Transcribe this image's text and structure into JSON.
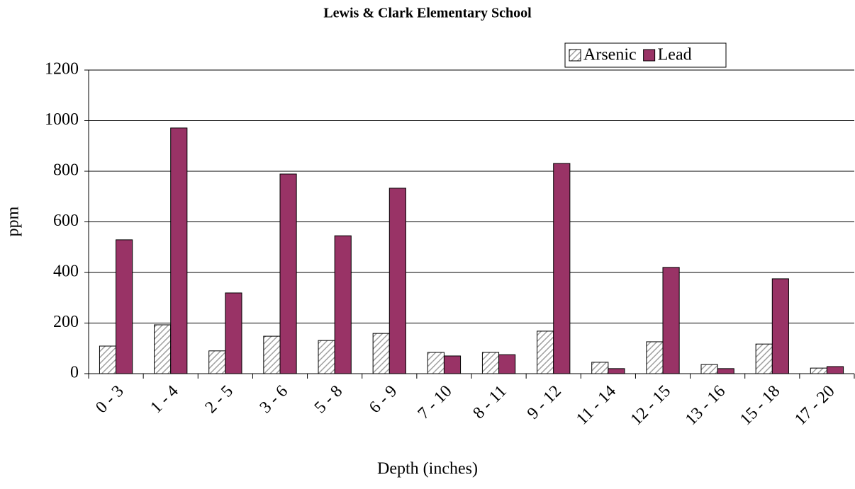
{
  "chart_data": {
    "type": "bar",
    "title": "Lewis & Clark Elementary School",
    "x_label": "Depth (inches)",
    "y_label": "ppm",
    "categories": [
      "0 - 3",
      "1 - 4",
      "2 - 5",
      "3 - 6",
      "5 - 8",
      "6 - 9",
      "7 - 10",
      "8 - 11",
      "9 - 12",
      "11 - 14",
      "12 - 15",
      "13 - 16",
      "15 - 18",
      "17 - 20"
    ],
    "series": [
      {
        "name": "Arsenic",
        "color": "#a0a0a0",
        "pattern": "hatch",
        "values": [
          109,
          193,
          90,
          148,
          131,
          159,
          84,
          84,
          168,
          45,
          126,
          36,
          117,
          22
        ]
      },
      {
        "name": "Lead",
        "color": "#993366",
        "values": [
          529,
          971,
          319,
          789,
          545,
          733,
          70,
          75,
          831,
          20,
          420,
          20,
          375,
          28
        ]
      }
    ],
    "ylim": [
      0,
      1200
    ],
    "yticks": [
      0,
      200,
      400,
      600,
      800,
      1000,
      1200
    ],
    "grid": true,
    "legend": "top-right"
  }
}
